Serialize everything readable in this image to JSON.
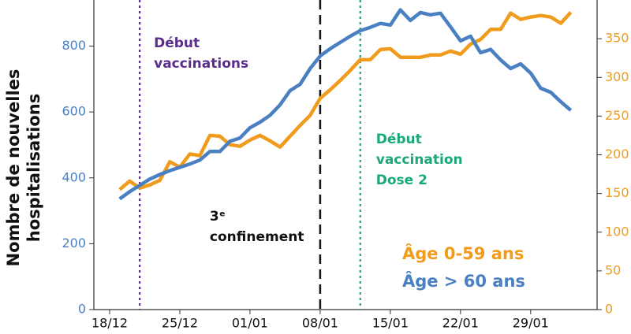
{
  "chart_data": {
    "type": "line",
    "ylabel": [
      "Nombre de nouvelles",
      "hospitalisations"
    ],
    "categories": [
      "18/12",
      null,
      null,
      null,
      null,
      null,
      null,
      "25/12",
      null,
      null,
      null,
      null,
      null,
      null,
      "01/01",
      null,
      null,
      null,
      null,
      null,
      null,
      "08/01",
      null,
      null,
      null,
      null,
      null,
      null,
      "15/01",
      null,
      null,
      null,
      null,
      null,
      null,
      "22/01",
      null,
      null,
      null,
      null,
      null,
      null,
      "29/01",
      null,
      null,
      null,
      null
    ],
    "series": [
      {
        "name": "Âge 0-59 ans",
        "color": "#f09b1c",
        "axis": "y2",
        "values": [
          null,
          155,
          166,
          157,
          161,
          167,
          191,
          184,
          201,
          199,
          225,
          224,
          213,
          211,
          219,
          225,
          218,
          210,
          224,
          238,
          251,
          273,
          284,
          296,
          309,
          323,
          323,
          336,
          337,
          326,
          326,
          326,
          329,
          329,
          334,
          330,
          343,
          349,
          362,
          362,
          383,
          375,
          378,
          380,
          378,
          370,
          384
        ]
      },
      {
        "name": "Âge > 60 ans",
        "color": "#4a80c2",
        "values": [
          null,
          336,
          358,
          377,
          396,
          410,
          422,
          432,
          442,
          454,
          480,
          480,
          511,
          521,
          552,
          569,
          590,
          622,
          665,
          684,
          732,
          770,
          792,
          811,
          830,
          847,
          857,
          869,
          864,
          910,
          878,
          902,
          895,
          900,
          859,
          816,
          830,
          780,
          790,
          758,
          732,
          746,
          718,
          672,
          660,
          631,
          605
        ]
      }
    ],
    "ylim": [
      0,
      940
    ],
    "yticks": [
      0,
      200,
      400,
      600,
      800
    ],
    "y2lim": [
      0,
      400
    ],
    "y2ticks": [
      0,
      50,
      100,
      150,
      200,
      250,
      300,
      350
    ],
    "annotations": [
      {
        "x": 3,
        "lines": [
          "Début",
          "vaccinations"
        ],
        "color": "#5b2d8e",
        "style": "dotted"
      },
      {
        "x": 21,
        "lines": [
          "3ᵉ",
          "confinement"
        ],
        "color": "#111111",
        "style": "dashed"
      },
      {
        "x": 25,
        "lines": [
          "Début",
          "vaccination",
          "Dose 2"
        ],
        "color": "#1aa87a",
        "style": "dotted"
      }
    ]
  }
}
